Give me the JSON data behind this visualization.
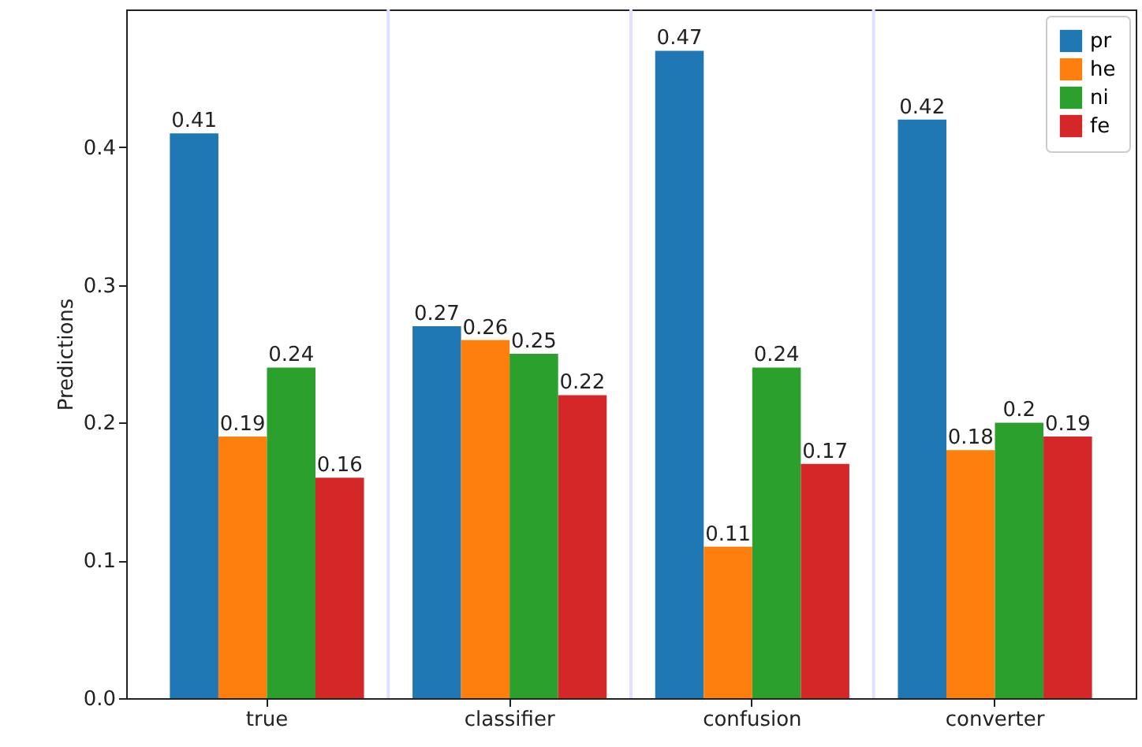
{
  "chart_data": {
    "type": "bar",
    "ylabel": "Predictions",
    "categories": [
      "true",
      "classifier",
      "confusion",
      "converter"
    ],
    "series": [
      {
        "name": "pr",
        "color": "#1f77b4",
        "values": [
          0.41,
          0.27,
          0.47,
          0.42
        ]
      },
      {
        "name": "he",
        "color": "#ff7f0e",
        "values": [
          0.19,
          0.26,
          0.11,
          0.18
        ]
      },
      {
        "name": "ni",
        "color": "#2ca02c",
        "values": [
          0.24,
          0.25,
          0.24,
          0.2
        ]
      },
      {
        "name": "fe",
        "color": "#d62728",
        "values": [
          0.16,
          0.22,
          0.17,
          0.19
        ]
      }
    ],
    "ylim": [
      0,
      0.5
    ],
    "yticks": [
      {
        "value": 0,
        "label": "0.0"
      },
      0.1,
      0.2,
      0.3,
      0.4
    ],
    "data_labels": true,
    "grid": "x",
    "legend": "top right"
  }
}
